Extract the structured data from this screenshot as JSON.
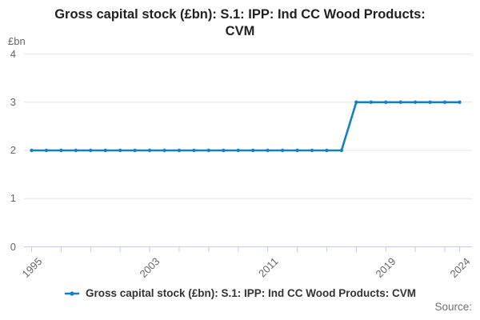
{
  "title": {
    "text": "Gross capital stock (£bn): S.1: IPP: Ind CC Wood Products: CVM",
    "line1": "Gross capital stock (£bn): S.1: IPP: Ind CC Wood Products:",
    "line2": "CVM"
  },
  "legend": {
    "label": "Gross capital stock (£bn): S.1: IPP: Ind CC Wood Products: CVM",
    "marker_icon": "line-with-dot"
  },
  "footer": {
    "source_label": "Source:"
  },
  "colors": {
    "line": "#1380c4",
    "grid": "#e6e6e6",
    "axis": "#c3cfdf",
    "tick_text": "#666666",
    "title_text": "#222222",
    "legend_text": "#333333",
    "source_text": "#707070"
  },
  "chart_data": {
    "type": "line",
    "title": "Gross capital stock (£bn): S.1: IPP: Ind CC Wood Products: CVM",
    "xlabel": "",
    "ylabel": "£bn",
    "ylim": [
      0,
      4
    ],
    "yticks": [
      0,
      1,
      2,
      3,
      4
    ],
    "x": [
      1995,
      1996,
      1997,
      1998,
      1999,
      2000,
      2001,
      2002,
      2003,
      2004,
      2005,
      2006,
      2007,
      2008,
      2009,
      2010,
      2011,
      2012,
      2013,
      2014,
      2015,
      2016,
      2017,
      2018,
      2019,
      2020,
      2021,
      2022,
      2023,
      2024
    ],
    "series": [
      {
        "name": "Gross capital stock (£bn): S.1: IPP: Ind CC Wood Products: CVM",
        "values": [
          2,
          2,
          2,
          2,
          2,
          2,
          2,
          2,
          2,
          2,
          2,
          2,
          2,
          2,
          2,
          2,
          2,
          2,
          2,
          2,
          2,
          2,
          3,
          3,
          3,
          3,
          3,
          3,
          3,
          3
        ]
      }
    ],
    "xticks_minor": [
      1995,
      1997,
      1999,
      2001,
      2003,
      2005,
      2007,
      2009,
      2011,
      2013,
      2015,
      2017,
      2019,
      2021,
      2023,
      2024
    ],
    "xtick_labels": [
      1995,
      2003,
      2011,
      2019,
      2024
    ],
    "grid": "horizontal",
    "legend_position": "bottom",
    "marker": "circle"
  }
}
